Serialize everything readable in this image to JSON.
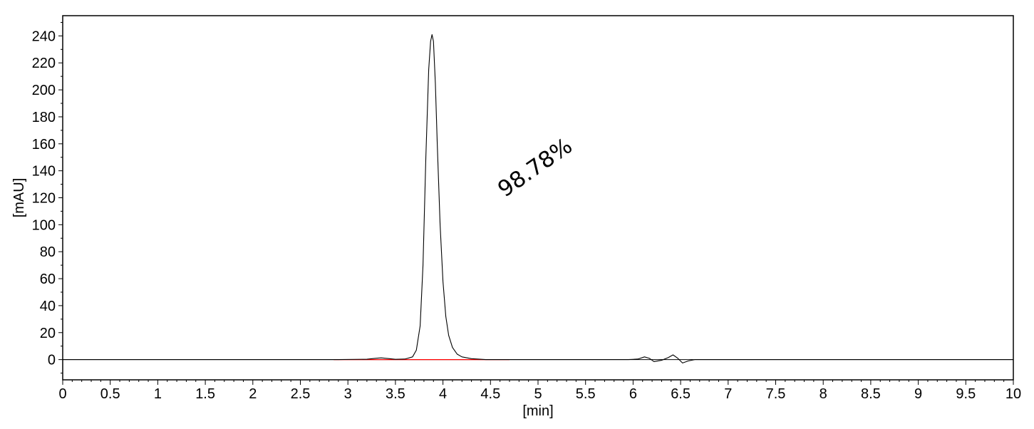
{
  "chart_data": {
    "type": "line",
    "title": "",
    "xlabel": "[min]",
    "ylabel": "[mAU]",
    "xlim": [
      0,
      10
    ],
    "ylim": [
      -15,
      255
    ],
    "grid": false,
    "x_ticks": [
      0,
      0.5,
      1,
      1.5,
      2,
      2.5,
      3,
      3.5,
      4,
      4.5,
      5,
      5.5,
      6,
      6.5,
      7,
      7.5,
      8,
      8.5,
      9,
      9.5,
      10
    ],
    "x_tick_labels": [
      "0",
      "0.5",
      "1",
      "1.5",
      "2",
      "2.5",
      "3",
      "3.5",
      "4",
      "4.5",
      "5",
      "5.5",
      "6",
      "6.5",
      "7",
      "7.5",
      "8",
      "8.5",
      "9",
      "9.5",
      "10"
    ],
    "y_ticks": [
      0,
      20,
      40,
      60,
      80,
      100,
      120,
      140,
      160,
      180,
      200,
      220,
      240
    ],
    "y_tick_labels": [
      "0",
      "20",
      "40",
      "60",
      "80",
      "100",
      "120",
      "140",
      "160",
      "180",
      "200",
      "220",
      "240"
    ],
    "series": [
      {
        "color": "#000000",
        "x": [
          0,
          2.9,
          3.2,
          3.3,
          3.35,
          3.42,
          3.5,
          3.6,
          3.68,
          3.72,
          3.76,
          3.79,
          3.82,
          3.85,
          3.87,
          3.885,
          3.9,
          3.92,
          3.94,
          3.97,
          4.0,
          4.03,
          4.06,
          4.1,
          4.15,
          4.2,
          4.3,
          4.45,
          5.8,
          5.95,
          6.05,
          6.12,
          6.17,
          6.22,
          6.3,
          6.37,
          6.42,
          6.47,
          6.52,
          6.58,
          6.65,
          10
        ],
        "y": [
          0,
          0,
          0.3,
          1,
          1.3,
          0.8,
          0.2,
          0.4,
          2,
          7,
          25,
          70,
          150,
          215,
          236,
          241,
          236,
          205,
          160,
          100,
          58,
          32,
          18,
          9,
          4,
          2,
          0.7,
          0,
          0,
          0,
          0.4,
          2,
          1,
          -1.5,
          -0.5,
          1.5,
          3.5,
          1,
          -2.5,
          -1,
          0,
          0
        ]
      }
    ],
    "baseline": {
      "color": "#ff0000",
      "x": [
        2.85,
        4.7
      ],
      "y": [
        0,
        0
      ]
    },
    "annotations": [
      {
        "text": "98.78%",
        "x": 4.65,
        "y": 120,
        "rotation": -35
      }
    ]
  }
}
